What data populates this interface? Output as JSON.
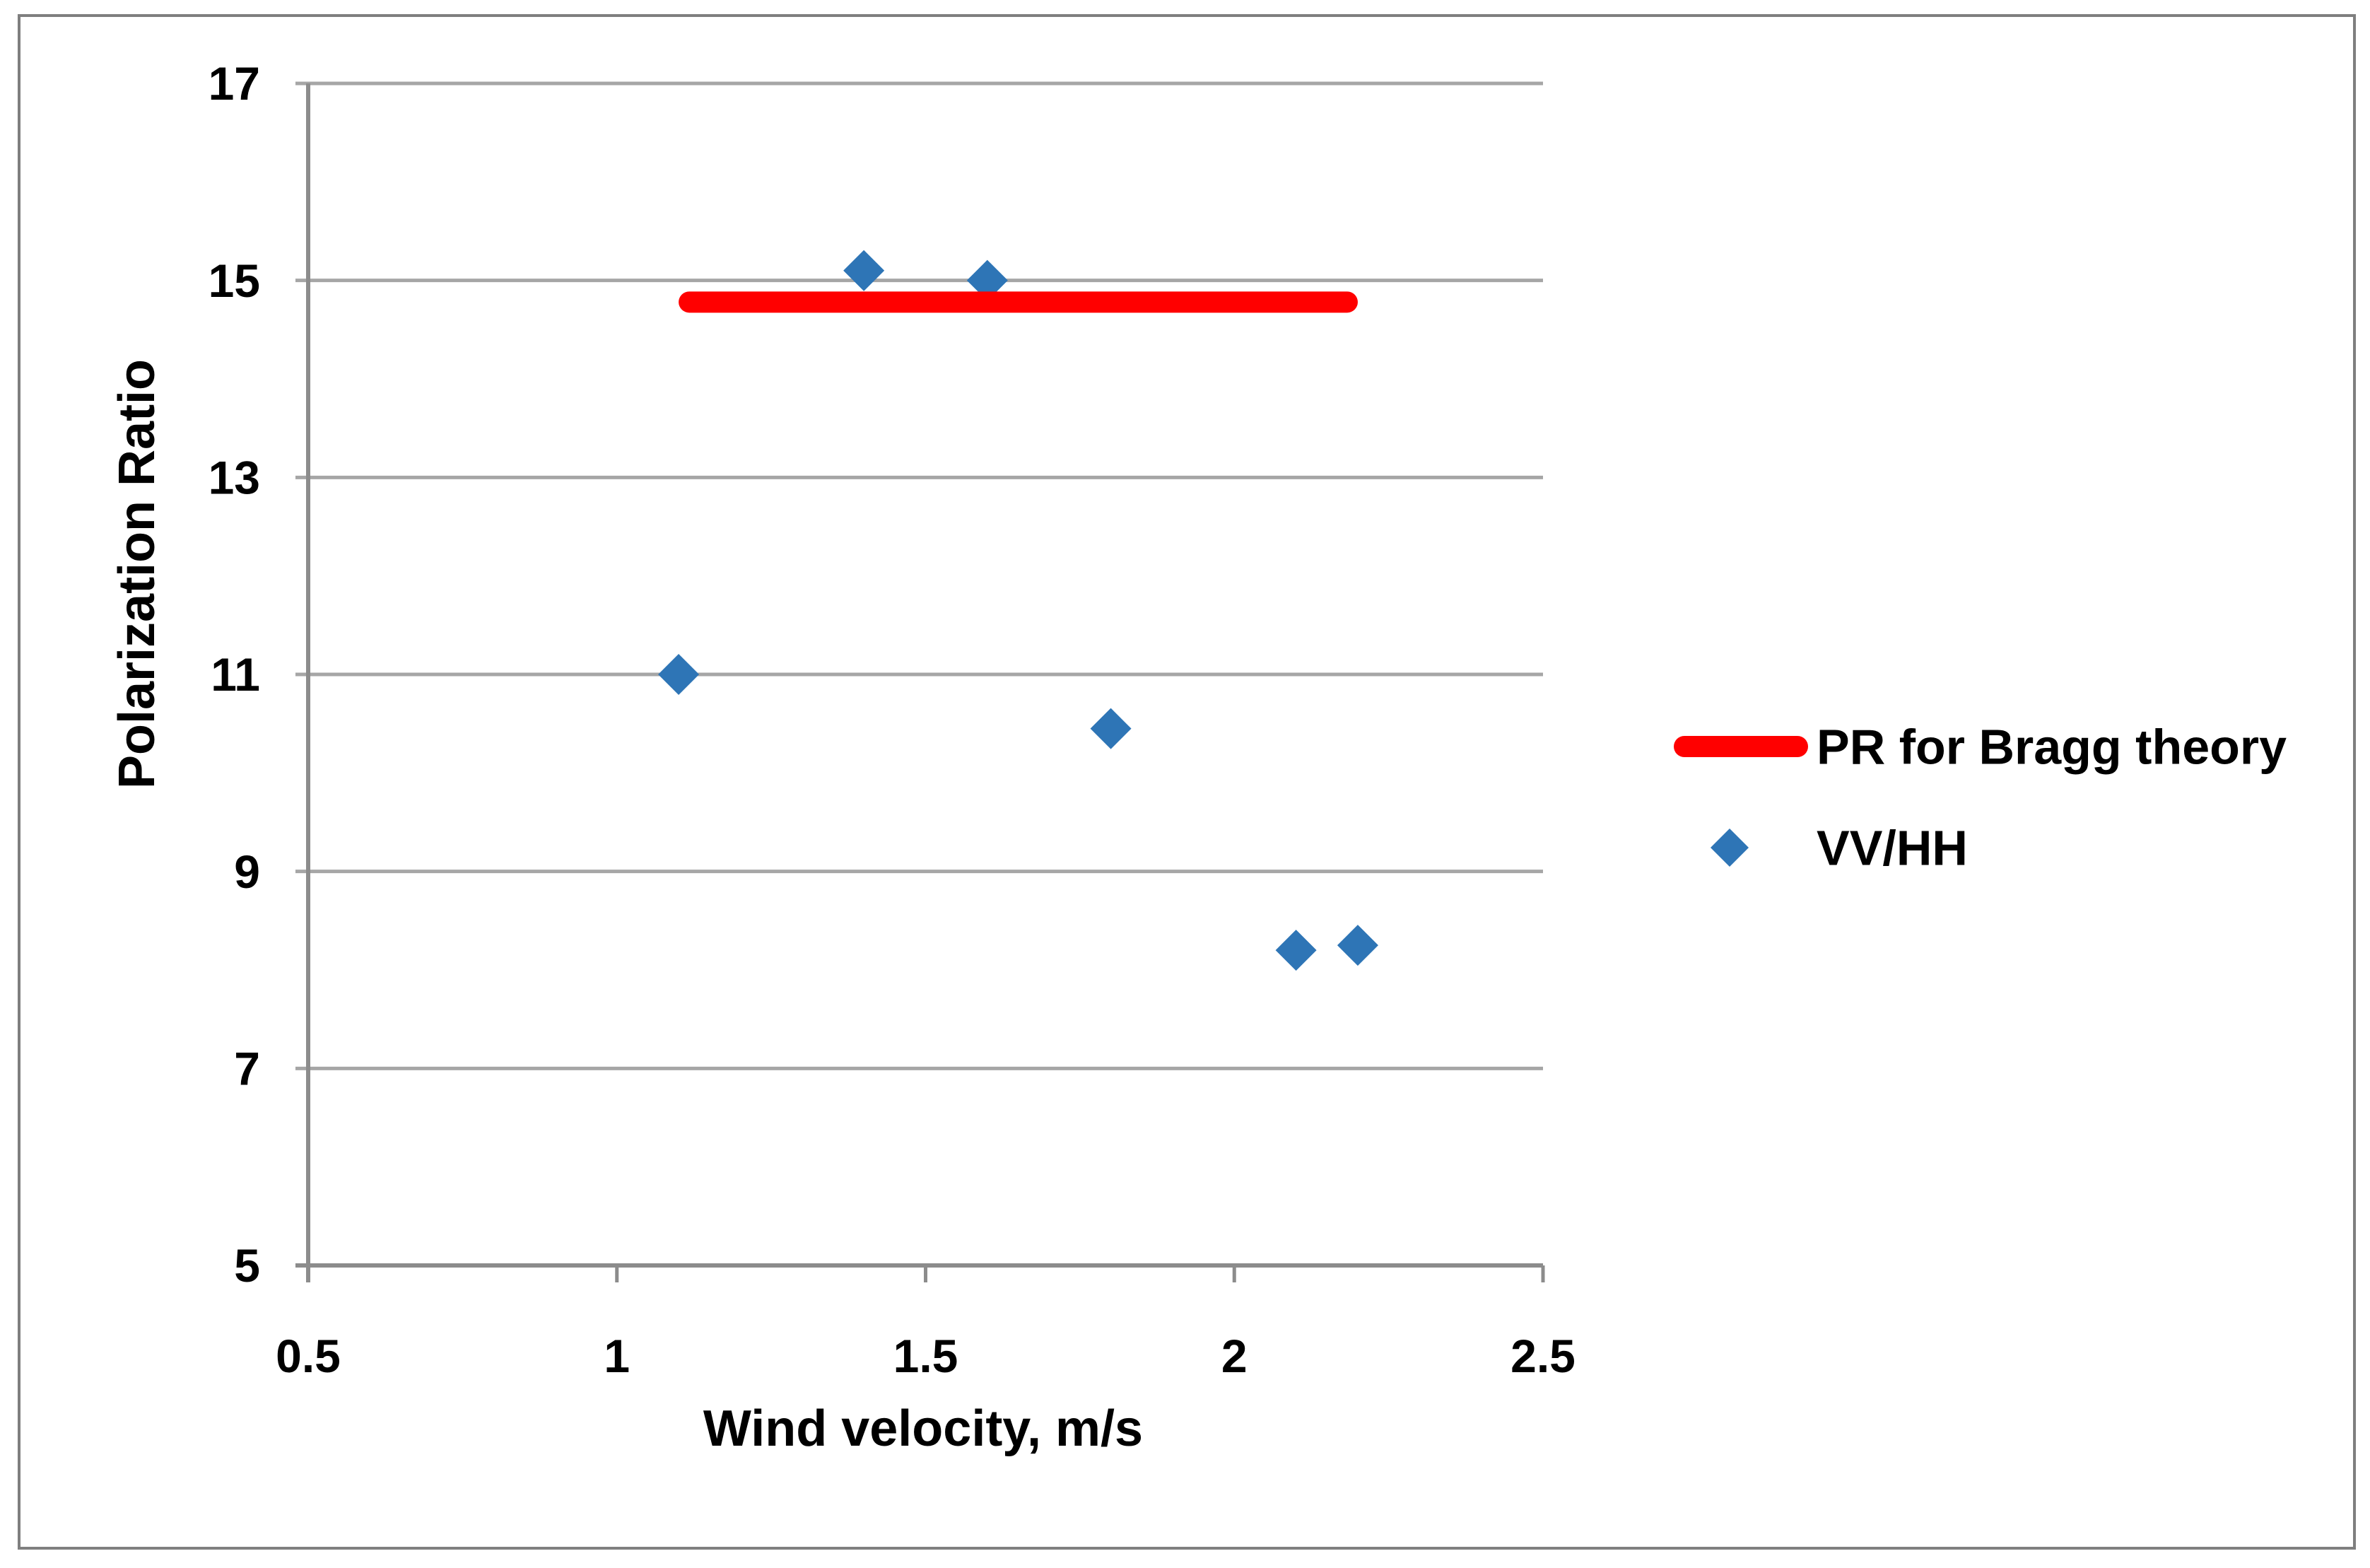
{
  "chart_data": {
    "type": "scatter",
    "title": "",
    "xlabel": "Wind velocity, m/s",
    "ylabel": "Polarization Ratio",
    "xlim": [
      0.5,
      2.5
    ],
    "ylim": [
      5,
      17
    ],
    "x_ticks": [
      0.5,
      1,
      1.5,
      2,
      2.5
    ],
    "x_tick_labels": [
      "0.5",
      "1",
      "1.5",
      "2",
      "2.5"
    ],
    "y_ticks": [
      5,
      7,
      9,
      11,
      13,
      15,
      17
    ],
    "y_tick_labels": [
      "5",
      "7",
      "9",
      "11",
      "13",
      "15",
      "17"
    ],
    "grid": "horizontal",
    "legend_position": "right",
    "series": [
      {
        "name": "PR for Bragg theory",
        "type": "line",
        "color": "#FF0000",
        "y_value": 14.78,
        "x_start": 1.1,
        "x_end": 2.2
      },
      {
        "name": "VV/HH",
        "type": "scatter",
        "marker": "diamond",
        "color": "#2E75B6",
        "points": [
          [
            1.1,
            11.0
          ],
          [
            1.4,
            15.1
          ],
          [
            1.6,
            15.0
          ],
          [
            1.8,
            10.45
          ],
          [
            2.1,
            8.2
          ],
          [
            2.2,
            8.25
          ]
        ]
      }
    ]
  },
  "colors": {
    "background": "#FFFFFF",
    "border": "#7F7F7F",
    "gridline": "#A6A6A6",
    "axis": "#8C8C8C",
    "text": "#000000",
    "bragg_line": "#FF0000",
    "marker_blue": "#2E75B6"
  }
}
